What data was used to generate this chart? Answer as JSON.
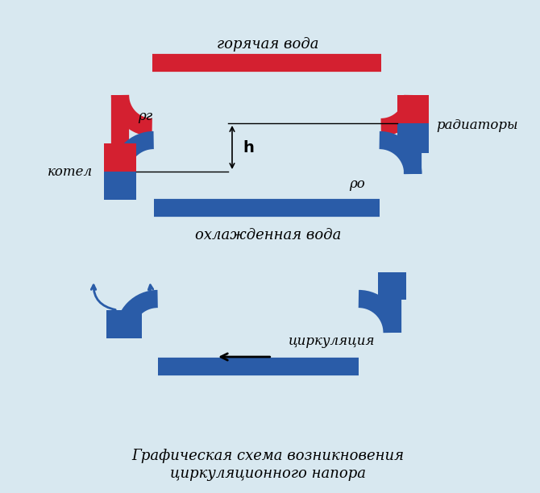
{
  "bg_color": "#d8e8f0",
  "red_color": "#d42030",
  "blue_color": "#2a5ca8",
  "black": "#000000",
  "label_hot": "горячая вода",
  "label_cold": "охлажденная вода",
  "label_kotel": "котел",
  "label_radiator": "радиаторы",
  "label_rho_g": "ρг",
  "label_rho_o": "ρо",
  "label_h": "h",
  "label_tsirk": "циркуляция",
  "caption_line1": "Графическая схема возникновения",
  "caption_line2": "циркуляционного напора"
}
